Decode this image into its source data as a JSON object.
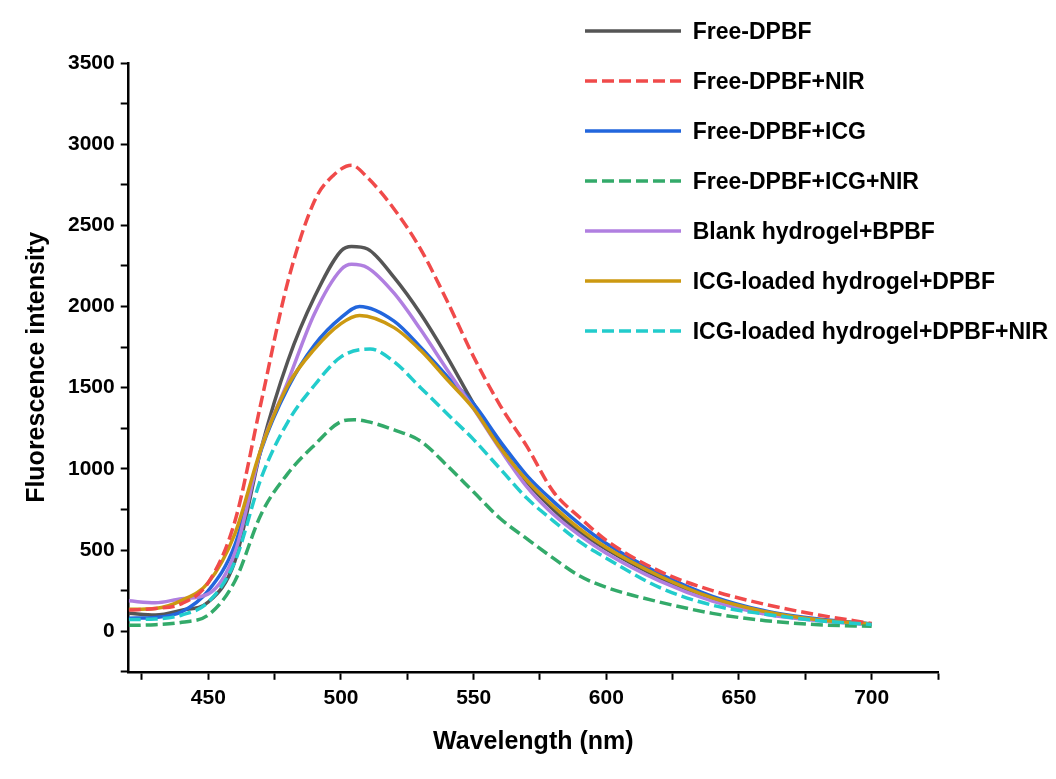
{
  "chart_data": {
    "type": "line",
    "xlabel": "Wavelength (nm)",
    "ylabel": "Fluorescence intensity",
    "xlim": [
      420,
      725
    ],
    "ylim": [
      -250,
      3500
    ],
    "xticks": [
      {
        "value": 425,
        "label": null
      },
      450,
      {
        "value": 475,
        "label": null
      },
      500,
      {
        "value": 525,
        "label": null
      },
      550,
      {
        "value": 575,
        "label": null
      },
      600,
      {
        "value": 625,
        "label": null
      },
      650,
      {
        "value": 675,
        "label": null
      },
      700,
      {
        "value": 725,
        "label": null
      }
    ],
    "yticks": [
      {
        "value": -250,
        "label": null
      },
      0,
      {
        "value": 250,
        "label": null
      },
      500,
      {
        "value": 750,
        "label": null
      },
      1000,
      {
        "value": 1250,
        "label": null
      },
      1500,
      {
        "value": 1750,
        "label": null
      },
      2000,
      {
        "value": 2250,
        "label": null
      },
      2500,
      {
        "value": 2750,
        "label": null
      },
      3000,
      {
        "value": 3250,
        "label": null
      },
      3500
    ],
    "grid": false,
    "legend": "top right",
    "marker": "none",
    "series": [
      {
        "name": "Free-DPBF",
        "color": "#555555",
        "line_style": "solid",
        "x": [
          420,
          430,
          440,
          450,
          460,
          470,
          480,
          490,
          500,
          504,
          510,
          520,
          530,
          540,
          550,
          560,
          570,
          580,
          590,
          600,
          620,
          640,
          660,
          680,
          700
        ],
        "values": [
          110,
          100,
          130,
          180,
          430,
          1130,
          1666,
          2058,
          2342,
          2370,
          2354,
          2179,
          1955,
          1690,
          1400,
          1140,
          920,
          750,
          610,
          505,
          330,
          200,
          115,
          70,
          45
        ]
      },
      {
        "name": "Free-DPBF+NIR",
        "color": "#f04a4a",
        "line_style": "dashed",
        "x": [
          420,
          430,
          440,
          450,
          460,
          470,
          480,
          490,
          497,
          504,
          510,
          520,
          530,
          540,
          550,
          560,
          570,
          580,
          590,
          600,
          620,
          640,
          660,
          680,
          700
        ],
        "values": [
          130,
          140,
          170,
          300,
          676,
          1418,
          2155,
          2650,
          2806,
          2870,
          2794,
          2601,
          2354,
          2034,
          1690,
          1390,
          1140,
          860,
          700,
          560,
          370,
          250,
          165,
          100,
          48
        ]
      },
      {
        "name": "Free-DPBF+ICG",
        "color": "#2266dd",
        "line_style": "solid",
        "x": [
          420,
          430,
          440,
          450,
          460,
          470,
          480,
          490,
          500,
          507,
          520,
          530,
          540,
          550,
          560,
          570,
          580,
          590,
          600,
          620,
          640,
          660,
          680,
          700
        ],
        "values": [
          80,
          85,
          120,
          250,
          530,
          1120,
          1500,
          1762,
          1931,
          2000,
          1910,
          1750,
          1570,
          1400,
          1170,
          960,
          800,
          660,
          540,
          355,
          215,
          125,
          75,
          45
        ]
      },
      {
        "name": "Free-DPBF+ICG+NIR",
        "color": "#33aa6a",
        "line_style": "dashed",
        "x": [
          420,
          430,
          440,
          450,
          460,
          470,
          480,
          490,
          500,
          505,
          510,
          520,
          530,
          540,
          550,
          560,
          570,
          580,
          590,
          600,
          620,
          640,
          660,
          680,
          700
        ],
        "values": [
          36,
          40,
          55,
          100,
          308,
          724,
          972,
          1147,
          1291,
          1303,
          1291,
          1240,
          1171,
          1020,
          857,
          694,
          570,
          450,
          340,
          270,
          180,
          110,
          65,
          40,
          30
        ]
      },
      {
        "name": "Blank hydrogel+BPBF",
        "color": "#b07fe0",
        "line_style": "solid",
        "x": [
          420,
          430,
          440,
          450,
          460,
          470,
          480,
          490,
          500,
          504,
          510,
          520,
          530,
          540,
          550,
          560,
          570,
          580,
          590,
          600,
          620,
          640,
          660,
          680,
          700
        ],
        "values": [
          187,
          175,
          200,
          230,
          483,
          1130,
          1539,
          1955,
          2227,
          2260,
          2239,
          2082,
          1858,
          1611,
          1370,
          1120,
          890,
          720,
          590,
          480,
          310,
          185,
          105,
          65,
          40
        ]
      },
      {
        "name": "ICG-loaded hydrogel+DPBF",
        "color": "#cc9911",
        "line_style": "solid",
        "x": [
          420,
          430,
          440,
          450,
          460,
          470,
          480,
          490,
          500,
          507,
          520,
          530,
          540,
          550,
          560,
          570,
          580,
          590,
          600,
          620,
          640,
          660,
          680,
          700
        ],
        "values": [
          135,
          140,
          190,
          300,
          600,
          1130,
          1515,
          1738,
          1895,
          1945,
          1870,
          1730,
          1550,
          1370,
          1130,
          930,
          770,
          630,
          515,
          340,
          205,
          120,
          70,
          45
        ]
      },
      {
        "name": "ICG-loaded hydrogel+DPBF+NIR",
        "color": "#22cccc",
        "line_style": "dashed",
        "x": [
          420,
          430,
          440,
          450,
          460,
          470,
          480,
          490,
          500,
          511,
          520,
          530,
          540,
          550,
          560,
          570,
          580,
          590,
          600,
          620,
          640,
          660,
          680,
          700
        ],
        "values": [
          72,
          75,
          100,
          180,
          428,
          947,
          1290,
          1515,
          1690,
          1738,
          1660,
          1500,
          1340,
          1180,
          1000,
          820,
          680,
          550,
          450,
          270,
          160,
          105,
          65,
          42
        ]
      }
    ]
  }
}
